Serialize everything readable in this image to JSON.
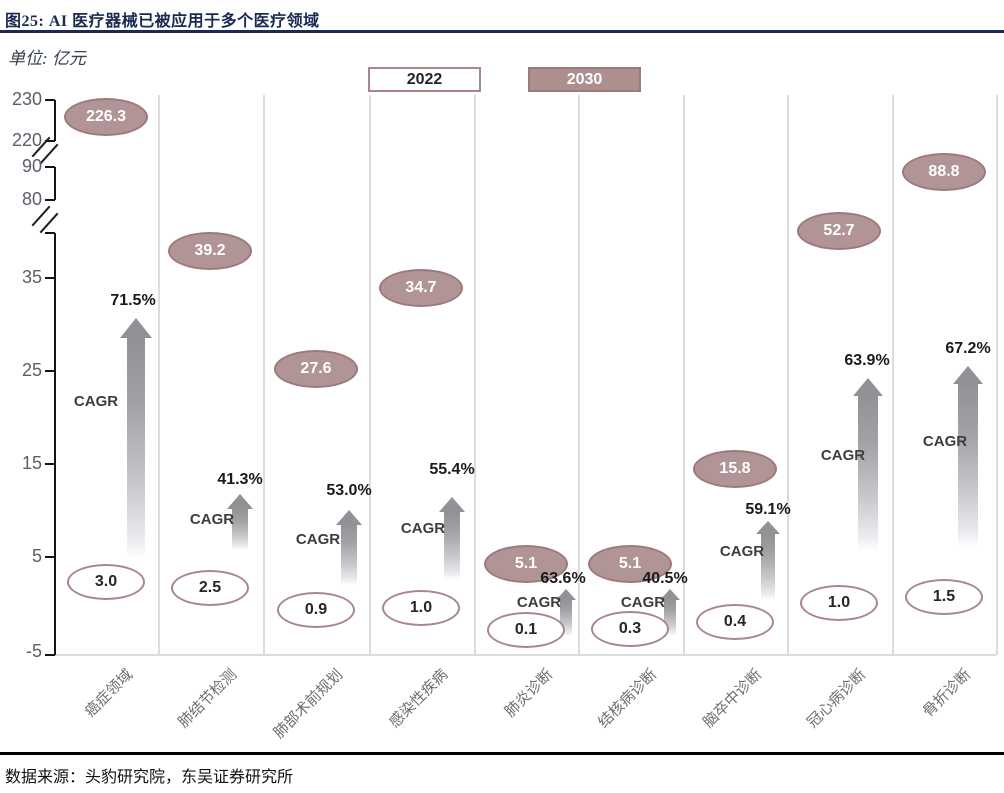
{
  "figure": {
    "title": "图25: AI 医疗器械已被应用于多个医疗领域",
    "unit_label": "单位: 亿元",
    "source": "数据来源：头豹研究院，东吴证券研究所"
  },
  "colors": {
    "title_navy": "#1b2a52",
    "bubble_fill_mauve": "#b19496",
    "bubble_border_mauve": "#9e797c",
    "arrow_gray": "#929296",
    "y_label_gray": "#59606a",
    "separator_gray": "#dcdcdc"
  },
  "chart_data": {
    "type": "scatter",
    "subtype": "labeled-bubble-comparison-with-broken-axis",
    "title": "AI 医疗器械已被应用于多个医疗领域",
    "unit": "亿元",
    "categories": [
      "癌症领域",
      "肺结节检测",
      "肺部术前规划",
      "感染性疾病",
      "肺炎诊断",
      "结核病诊断",
      "脑卒中诊断",
      "冠心病诊断",
      "骨折诊断"
    ],
    "series": [
      {
        "name": "2022",
        "style": "outline",
        "values": [
          3.0,
          2.5,
          0.9,
          1.0,
          0.1,
          0.3,
          0.4,
          1.0,
          1.5
        ],
        "labels": [
          "3.0",
          "2.5",
          "0.9",
          "1.0",
          "0.1",
          "0.3",
          "0.4",
          "1.0",
          "1.5"
        ]
      },
      {
        "name": "2030",
        "style": "filled",
        "values": [
          226.3,
          39.2,
          27.6,
          34.7,
          5.1,
          5.1,
          15.8,
          52.7,
          88.8
        ],
        "labels": [
          "226.3",
          "39.2",
          "27.6",
          "34.7",
          "5.1",
          "5.1",
          "15.8",
          "52.7",
          "88.8"
        ]
      }
    ],
    "cagr_label": "CAGR",
    "cagr": [
      "71.5%",
      "41.3%",
      "53.0%",
      "55.4%",
      "63.6%",
      "40.5%",
      "59.1%",
      "63.9%",
      "67.2%"
    ],
    "y_ticks": [
      230,
      220,
      90,
      80,
      35,
      25,
      15,
      5,
      -5
    ],
    "axis_breaks": [
      [
        220,
        90
      ],
      [
        80,
        35
      ]
    ],
    "ylim": [
      -5,
      230
    ],
    "legend_position": "top",
    "grid": "vertical-category-separators"
  }
}
